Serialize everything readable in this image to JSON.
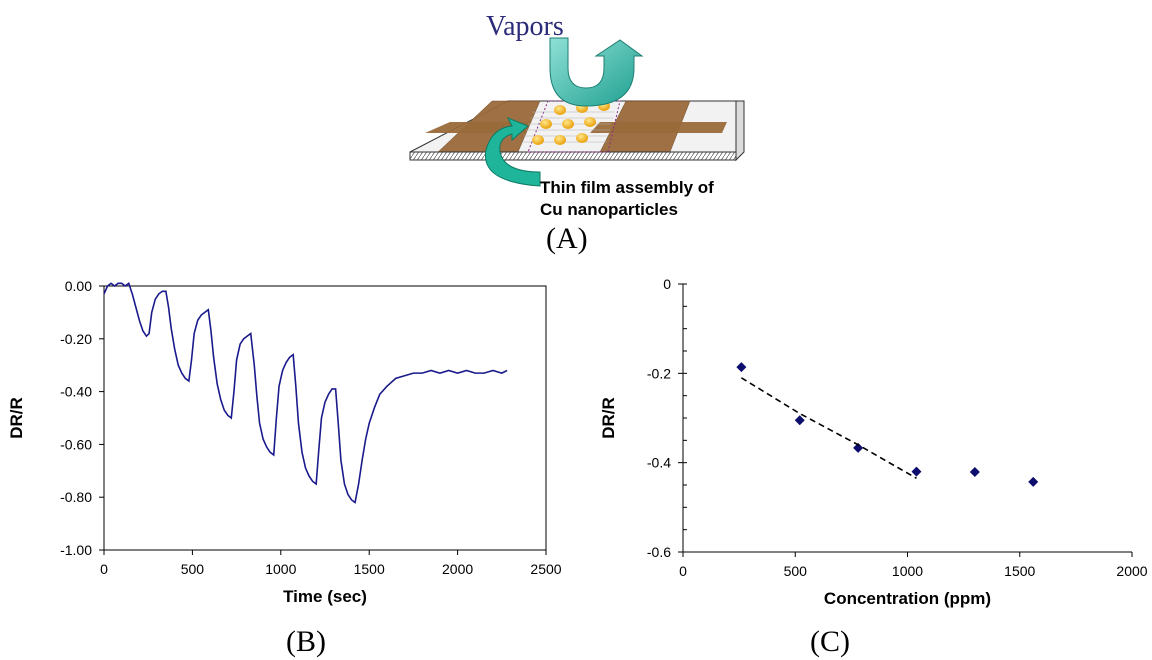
{
  "diagram": {
    "vapors_label": "Vapors",
    "film_label_line1": "Thin film assembly of",
    "film_label_line2": "Cu nanoparticles",
    "panel_label": "(A)"
  },
  "panel_labels": {
    "b": "(B)",
    "c": "(C)"
  },
  "colors": {
    "series": "#1a1a8c",
    "marker": "#0d0d6e",
    "electrode": "#9a6a3a",
    "nanoparticle": "#f5b400",
    "arrow_teal": "#2ab3a0"
  },
  "chart_data": [
    {
      "type": "line",
      "xlabel": "Time (sec)",
      "ylabel": "DR/R",
      "xlim": [
        0,
        2500
      ],
      "ylim": [
        -1.0,
        0.0
      ],
      "xticks": [
        "0",
        "500",
        "1000",
        "1500",
        "2000",
        "2500"
      ],
      "yticks": [
        "0.00",
        "-0.20",
        "-0.40",
        "-0.60",
        "-0.80",
        "-1.00"
      ],
      "series": [
        {
          "x": [
            0,
            20,
            40,
            60,
            80,
            100,
            120,
            140,
            160,
            180,
            200,
            220,
            240,
            255,
            270,
            290,
            310,
            330,
            350,
            365,
            380,
            400,
            420,
            440,
            460,
            480,
            495,
            510,
            530,
            550,
            570,
            590,
            605,
            620,
            640,
            660,
            680,
            700,
            720,
            735,
            750,
            770,
            790,
            810,
            830,
            850,
            865,
            880,
            900,
            920,
            940,
            960,
            975,
            990,
            1010,
            1030,
            1050,
            1070,
            1085,
            1100,
            1120,
            1140,
            1160,
            1180,
            1200,
            1215,
            1230,
            1250,
            1270,
            1290,
            1310,
            1325,
            1340,
            1360,
            1380,
            1400,
            1420,
            1440,
            1460,
            1480,
            1500,
            1530,
            1560,
            1600,
            1650,
            1700,
            1750,
            1800,
            1850,
            1900,
            1950,
            2000,
            2050,
            2100,
            2150,
            2200,
            2250,
            2280
          ],
          "y": [
            -0.03,
            0.0,
            0.01,
            0.0,
            0.01,
            0.01,
            0.0,
            0.01,
            -0.03,
            -0.08,
            -0.13,
            -0.17,
            -0.19,
            -0.18,
            -0.1,
            -0.05,
            -0.03,
            -0.02,
            -0.02,
            -0.08,
            -0.16,
            -0.24,
            -0.3,
            -0.33,
            -0.35,
            -0.36,
            -0.28,
            -0.18,
            -0.13,
            -0.11,
            -0.1,
            -0.09,
            -0.17,
            -0.27,
            -0.37,
            -0.43,
            -0.47,
            -0.49,
            -0.5,
            -0.4,
            -0.28,
            -0.22,
            -0.2,
            -0.19,
            -0.18,
            -0.3,
            -0.42,
            -0.52,
            -0.58,
            -0.61,
            -0.63,
            -0.64,
            -0.5,
            -0.38,
            -0.32,
            -0.29,
            -0.27,
            -0.26,
            -0.38,
            -0.52,
            -0.63,
            -0.69,
            -0.72,
            -0.74,
            -0.75,
            -0.62,
            -0.5,
            -0.44,
            -0.41,
            -0.39,
            -0.39,
            -0.52,
            -0.66,
            -0.75,
            -0.79,
            -0.81,
            -0.82,
            -0.75,
            -0.66,
            -0.58,
            -0.52,
            -0.46,
            -0.41,
            -0.38,
            -0.35,
            -0.34,
            -0.33,
            -0.33,
            -0.32,
            -0.33,
            -0.32,
            -0.33,
            -0.32,
            -0.33,
            -0.33,
            -0.32,
            -0.33,
            -0.32
          ]
        }
      ]
    },
    {
      "type": "scatter",
      "xlabel": "Concentration (ppm)",
      "ylabel": "DR/R",
      "xlim": [
        0,
        2000
      ],
      "ylim": [
        -0.6,
        0.0
      ],
      "xticks": [
        "0",
        "500",
        "1000",
        "1500",
        "2000"
      ],
      "yticks": [
        "0",
        "-0.2",
        "-0.4",
        "-0.6"
      ],
      "series": [
        {
          "x": [
            260,
            520,
            780,
            1040,
            1300,
            1560
          ],
          "y": [
            -0.186,
            -0.305,
            -0.367,
            -0.42,
            -0.421,
            -0.443
          ]
        }
      ],
      "trendline": {
        "x": [
          260,
          520,
          780,
          1040
        ],
        "y": [
          -0.21,
          -0.29,
          -0.36,
          -0.435
        ]
      }
    }
  ]
}
